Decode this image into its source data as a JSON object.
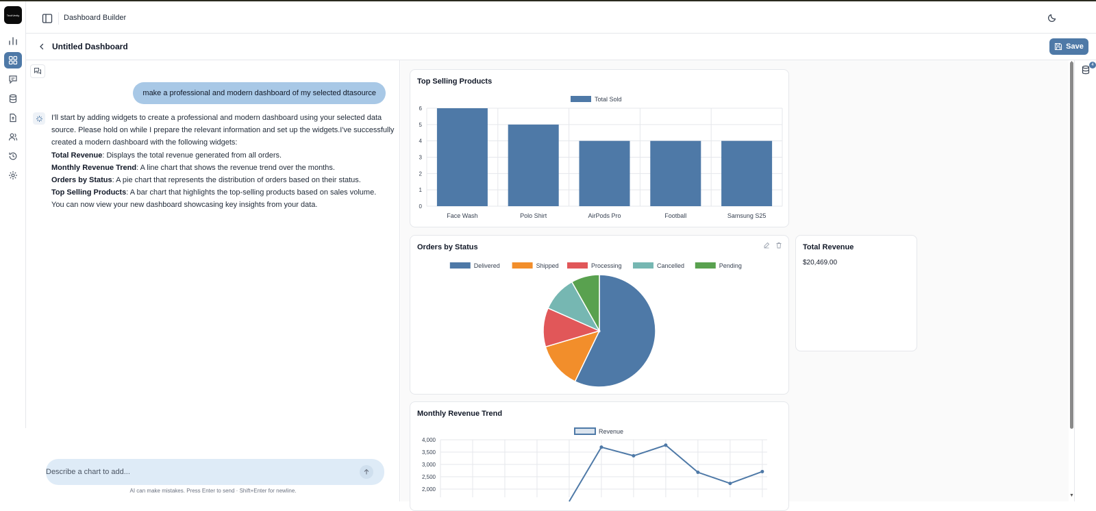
{
  "app": {
    "logo_text": "TechVerity",
    "page_title": "Dashboard Builder"
  },
  "rail": {
    "items": [
      "analytics-icon",
      "dashboard-grid-icon",
      "messages-icon",
      "database-icon",
      "file-upload-icon",
      "users-icon",
      "history-icon",
      "settings-icon"
    ],
    "active_index": 1
  },
  "subbar": {
    "dashboard_title": "Untitled Dashboard",
    "save_label": "Save"
  },
  "chat": {
    "user_message": "make a professional and modern dashboard of my selected dtasource",
    "ai_intro": "I'll start by adding widgets to create a professional and modern dashboard using your selected data source. Please hold on while I prepare the relevant information and set up the widgets.I've successfully created a modern dashboard with the following widgets:",
    "ai_items": [
      {
        "name": "Total Revenue",
        "desc": ": Displays the total revenue generated from all orders."
      },
      {
        "name": "Monthly Revenue Trend",
        "desc": ": A line chart that shows the revenue trend over the months."
      },
      {
        "name": "Orders by Status",
        "desc": ": A pie chart that represents the distribution of orders based on their status."
      },
      {
        "name": "Top Selling Products",
        "desc": ": A bar chart that highlights the top-selling products based on sales volume."
      }
    ],
    "ai_outro": "You can now view your new dashboard showcasing key insights from your data.",
    "input_placeholder": "Describe a chart to add...",
    "disclaimer": "AI can make mistakes. Press Enter to send · Shift+Enter for newline."
  },
  "widgets": {
    "top_selling": {
      "title": "Top Selling Products"
    },
    "orders_status": {
      "title": "Orders by Status"
    },
    "total_revenue": {
      "title": "Total Revenue",
      "value": "$20,469.00"
    },
    "monthly_trend": {
      "title": "Monthly Revenue Trend"
    }
  },
  "right_rail": {
    "badge": "4"
  },
  "colors": {
    "accent": "#4e79a7",
    "orange": "#f28e2b",
    "red": "#e15759",
    "teal": "#76b7b2",
    "green": "#59a14f"
  },
  "chart_data": [
    {
      "type": "bar",
      "title": "Top Selling Products",
      "categories": [
        "Face Wash",
        "Polo Shirt",
        "AirPods Pro",
        "Football",
        "Samsung S25"
      ],
      "series": [
        {
          "name": "Total Sold",
          "values": [
            6,
            5,
            4,
            4,
            4
          ]
        }
      ],
      "ylim": [
        0,
        6
      ],
      "yticks": [
        "0",
        "1",
        "2",
        "3",
        "4",
        "5",
        "6"
      ],
      "grid": true,
      "legend": "top-center"
    },
    {
      "type": "pie",
      "title": "Orders by Status",
      "labels": [
        "Delivered",
        "Shipped",
        "Processing",
        "Cancelled",
        "Pending"
      ],
      "values": [
        56,
        13,
        11,
        10,
        8
      ],
      "colors": [
        "#4e79a7",
        "#f28e2b",
        "#e15759",
        "#76b7b2",
        "#59a14f"
      ],
      "legend": "top-center"
    },
    {
      "type": "line",
      "title": "Monthly Revenue Trend",
      "series": [
        {
          "name": "Revenue",
          "values": [
            null,
            null,
            null,
            null,
            1500,
            3700,
            3350,
            3780,
            2680,
            2230,
            2710
          ]
        }
      ],
      "ylim_visible": [
        2000,
        4000
      ],
      "yticks": [
        "2,000",
        "2,500",
        "3,000",
        "3,500",
        "4,000"
      ],
      "grid": true,
      "legend": "top-center"
    }
  ]
}
